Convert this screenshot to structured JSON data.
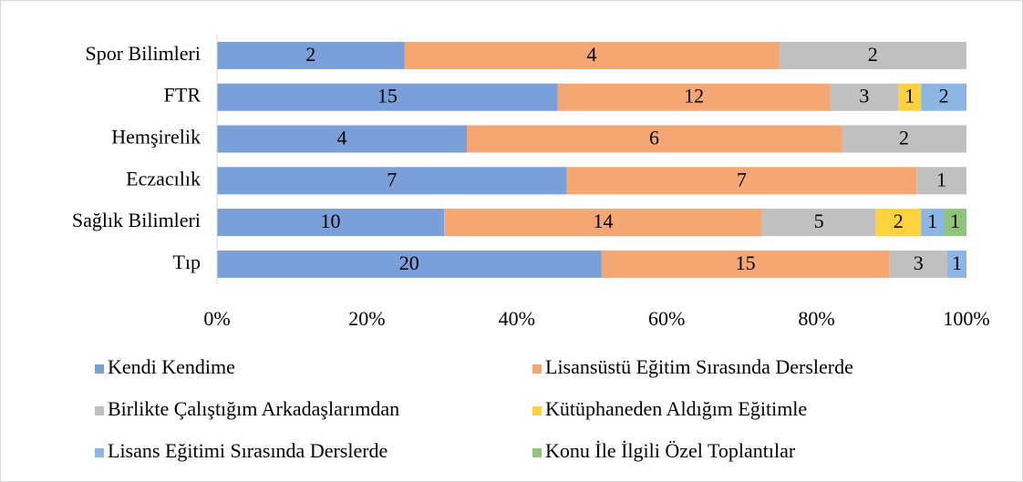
{
  "chart_data": {
    "type": "bar",
    "orientation": "horizontal",
    "stacking": "percent",
    "categories": [
      "Spor Bilimleri",
      "FTR",
      "Hemşirelik",
      "Eczacılık",
      "Sağlık Bilimleri",
      "Tıp"
    ],
    "series": [
      {
        "name": "Kendi Kendime",
        "color": "#7a9fd9",
        "values": [
          2,
          15,
          4,
          7,
          10,
          20
        ]
      },
      {
        "name": "Lisansüstü Eğitim Sırasında Derslerde",
        "color": "#f4a772",
        "values": [
          4,
          12,
          6,
          7,
          14,
          15
        ]
      },
      {
        "name": "Birlikte Çalıştığım Arkadaşlarımdan",
        "color": "#c0c0c0",
        "values": [
          2,
          3,
          2,
          1,
          5,
          3
        ]
      },
      {
        "name": "Kütüphaneden Aldığım Eğitimle",
        "color": "#fed23f",
        "values": [
          null,
          1,
          null,
          null,
          2,
          null
        ]
      },
      {
        "name": "Lisans Eğitimi Sırasında Derslerde",
        "color": "#8db6e4",
        "values": [
          null,
          2,
          null,
          null,
          1,
          1
        ]
      },
      {
        "name": "Konu İle İlgili Özel Toplantılar",
        "color": "#8fc47a",
        "values": [
          null,
          null,
          null,
          null,
          1,
          null
        ]
      }
    ],
    "xlim": [
      0,
      100
    ],
    "xticks": [
      {
        "value": 0,
        "label": "0%"
      },
      {
        "value": 20,
        "label": "20%"
      },
      {
        "value": 40,
        "label": "40%"
      },
      {
        "value": 60,
        "label": "60%"
      },
      {
        "value": 80,
        "label": "80%"
      },
      {
        "value": 100,
        "label": "100%"
      }
    ],
    "legend": "bottom"
  }
}
